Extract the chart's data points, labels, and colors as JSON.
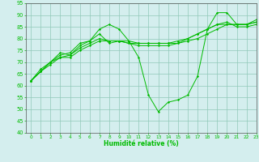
{
  "title": "",
  "xlabel": "Humidité relative (%)",
  "ylabel": "",
  "background_color": "#d4eeee",
  "grid_color": "#90c8b8",
  "line_color": "#00bb00",
  "xlim": [
    -0.5,
    23
  ],
  "ylim": [
    40,
    95
  ],
  "yticks": [
    40,
    45,
    50,
    55,
    60,
    65,
    70,
    75,
    80,
    85,
    90,
    95
  ],
  "xticks": [
    0,
    1,
    2,
    3,
    4,
    5,
    6,
    7,
    8,
    9,
    10,
    11,
    12,
    13,
    14,
    15,
    16,
    17,
    18,
    19,
    20,
    21,
    22,
    23
  ],
  "series": [
    [
      62,
      67,
      70,
      74,
      73,
      77,
      79,
      84,
      86,
      84,
      79,
      72,
      56,
      49,
      53,
      54,
      56,
      64,
      84,
      91,
      91,
      86,
      86,
      88
    ],
    [
      62,
      66,
      70,
      73,
      74,
      78,
      79,
      82,
      78,
      79,
      79,
      78,
      78,
      78,
      78,
      78,
      79,
      80,
      82,
      84,
      86,
      86,
      86,
      87
    ],
    [
      62,
      66,
      70,
      72,
      73,
      76,
      78,
      80,
      79,
      79,
      78,
      78,
      78,
      78,
      78,
      79,
      80,
      82,
      84,
      86,
      86,
      86,
      86,
      87
    ],
    [
      62,
      66,
      69,
      72,
      72,
      75,
      77,
      79,
      79,
      79,
      78,
      77,
      77,
      77,
      77,
      78,
      80,
      82,
      84,
      86,
      87,
      85,
      85,
      86
    ]
  ]
}
